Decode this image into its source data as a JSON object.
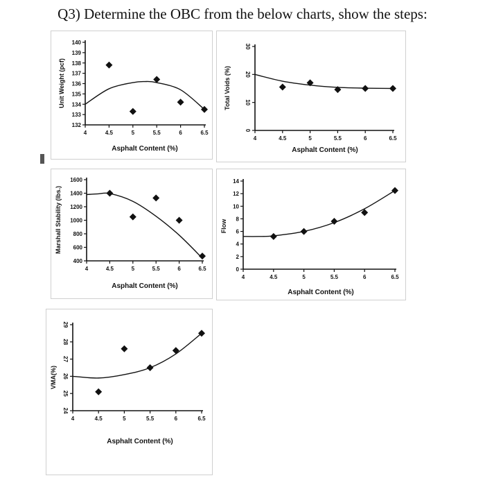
{
  "question": "Q3) Determine the OBC from the below charts, show the steps:",
  "chart_data": [
    {
      "id": "unit-weight",
      "type": "scatter",
      "ylabel": "Unit Weight (pcf)",
      "xlabel": "Asphalt Content (%)",
      "xlim": [
        4,
        6.5
      ],
      "ylim": [
        132,
        140
      ],
      "xticks": [
        "4",
        "4.5",
        "5",
        "5.5",
        "6",
        "6.5"
      ],
      "yticks": [
        "132",
        "133",
        "134",
        "135",
        "136",
        "137",
        "138",
        "139",
        "140"
      ],
      "points": [
        [
          4.5,
          137.8
        ],
        [
          5,
          133.3
        ],
        [
          5.5,
          136.4
        ],
        [
          6,
          134.2
        ],
        [
          6.5,
          133.5
        ]
      ],
      "curve": [
        [
          4,
          134
        ],
        [
          4.5,
          135.5
        ],
        [
          5,
          136.1
        ],
        [
          5.25,
          136.2
        ],
        [
          5.5,
          136.1
        ],
        [
          6,
          135.4
        ],
        [
          6.5,
          133.5
        ]
      ]
    },
    {
      "id": "total-voids",
      "type": "scatter",
      "ylabel": "Total Voids (%)",
      "xlabel": "Asphalt Content (%)",
      "xlim": [
        4,
        6.5
      ],
      "ylim": [
        0,
        30
      ],
      "xticks": [
        "4",
        "4.5",
        "5",
        "5.5",
        "6",
        "6.5"
      ],
      "yticks": [
        "0",
        "10",
        "20",
        "30"
      ],
      "points": [
        [
          4.5,
          15.5
        ],
        [
          5,
          17
        ],
        [
          5.5,
          14.6
        ],
        [
          6,
          15
        ],
        [
          6.5,
          15
        ]
      ],
      "curve": [
        [
          4,
          20
        ],
        [
          4.5,
          17.6
        ],
        [
          5,
          16.2
        ],
        [
          5.5,
          15.4
        ],
        [
          6,
          15.1
        ],
        [
          6.5,
          15
        ]
      ]
    },
    {
      "id": "marshall-stability",
      "type": "scatter",
      "ylabel": "Marshall Stability (lbs.)",
      "xlabel": "Asphalt Content (%)",
      "xlim": [
        4,
        6.5
      ],
      "ylim": [
        400,
        1600
      ],
      "xticks": [
        "4",
        "4.5",
        "5",
        "5.5",
        "6",
        "6.5"
      ],
      "yticks": [
        "400",
        "600",
        "800",
        "1000",
        "1200",
        "1400",
        "1600"
      ],
      "points": [
        [
          4.5,
          1400
        ],
        [
          5,
          1050
        ],
        [
          5.5,
          1330
        ],
        [
          6,
          1000
        ],
        [
          6.5,
          470
        ]
      ],
      "curve": [
        [
          4,
          1380
        ],
        [
          4.25,
          1390
        ],
        [
          4.5,
          1395
        ],
        [
          5,
          1280
        ],
        [
          5.5,
          1060
        ],
        [
          6,
          780
        ],
        [
          6.5,
          440
        ]
      ]
    },
    {
      "id": "flow",
      "type": "scatter",
      "ylabel": "Flow",
      "xlabel": "Asphalt Content (%)",
      "xlim": [
        4,
        6.5
      ],
      "ylim": [
        0,
        14
      ],
      "xticks": [
        "4",
        "4.5",
        "5",
        "5.5",
        "6",
        "6.5"
      ],
      "yticks": [
        "0",
        "2",
        "4",
        "6",
        "8",
        "10",
        "12",
        "14"
      ],
      "points": [
        [
          4.5,
          5.2
        ],
        [
          5,
          6
        ],
        [
          5.5,
          7.6
        ],
        [
          6,
          9
        ],
        [
          6.5,
          12.5
        ]
      ],
      "curve": [
        [
          4,
          5.2
        ],
        [
          4.25,
          5.2
        ],
        [
          4.5,
          5.3
        ],
        [
          5,
          6
        ],
        [
          5.5,
          7.4
        ],
        [
          6,
          9.6
        ],
        [
          6.5,
          12.5
        ]
      ]
    },
    {
      "id": "vma",
      "type": "scatter",
      "ylabel": "VMA(%)",
      "xlabel": "Asphalt Content (%)",
      "xlim": [
        4,
        6.5
      ],
      "ylim": [
        24,
        29
      ],
      "xticks": [
        "4",
        "4.5",
        "5",
        "5.5",
        "6",
        "6.5"
      ],
      "yticks": [
        "24",
        "25",
        "26",
        "27",
        "28",
        "29"
      ],
      "points": [
        [
          4.5,
          25.1
        ],
        [
          5,
          27.6
        ],
        [
          5.5,
          26.5
        ],
        [
          6,
          27.5
        ],
        [
          6.5,
          28.5
        ]
      ],
      "curve": [
        [
          4,
          26
        ],
        [
          4.5,
          25.9
        ],
        [
          5,
          26.1
        ],
        [
          5.5,
          26.5
        ],
        [
          6,
          27.3
        ],
        [
          6.5,
          28.5
        ]
      ]
    }
  ]
}
